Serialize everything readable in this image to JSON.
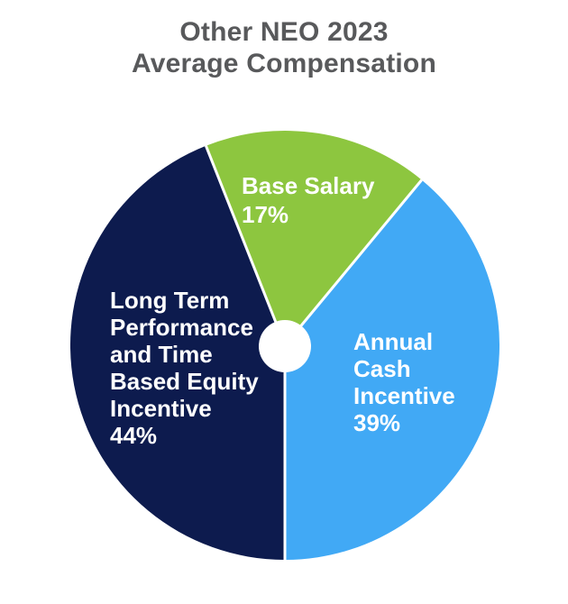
{
  "page": {
    "background": "#ffffff"
  },
  "colors": {
    "title_text": "#58595b",
    "slice_label_text": "#ffffff",
    "separator": "#ffffff",
    "hole": "#ffffff"
  },
  "chart_data": {
    "type": "pie",
    "title": "Other NEO 2023 Average Compensation",
    "title_lines": [
      "Other NEO 2023",
      "Average Compensation"
    ],
    "donut": true,
    "hole_ratio": 0.12,
    "start_angle_deg": -21.6,
    "direction": "clockwise",
    "legend": "none",
    "labels_position": "inside",
    "units": "percent",
    "slices": [
      {
        "name": "Base Salary",
        "value": 17,
        "color": "#8dc63f",
        "label_lines": [
          "Base Salary",
          "17%"
        ]
      },
      {
        "name": "Annual Cash Incentive",
        "value": 39,
        "color": "#41a9f5",
        "label_lines": [
          "Annual",
          "Cash",
          "Incentive",
          "39%"
        ]
      },
      {
        "name": "Long Term Performance and Time Based Equity Incentive",
        "value": 44,
        "color": "#0d1b4e",
        "label_lines": [
          "Long Term",
          "Performance",
          "and Time",
          "Based Equity",
          "Incentive",
          "44%"
        ]
      }
    ]
  }
}
